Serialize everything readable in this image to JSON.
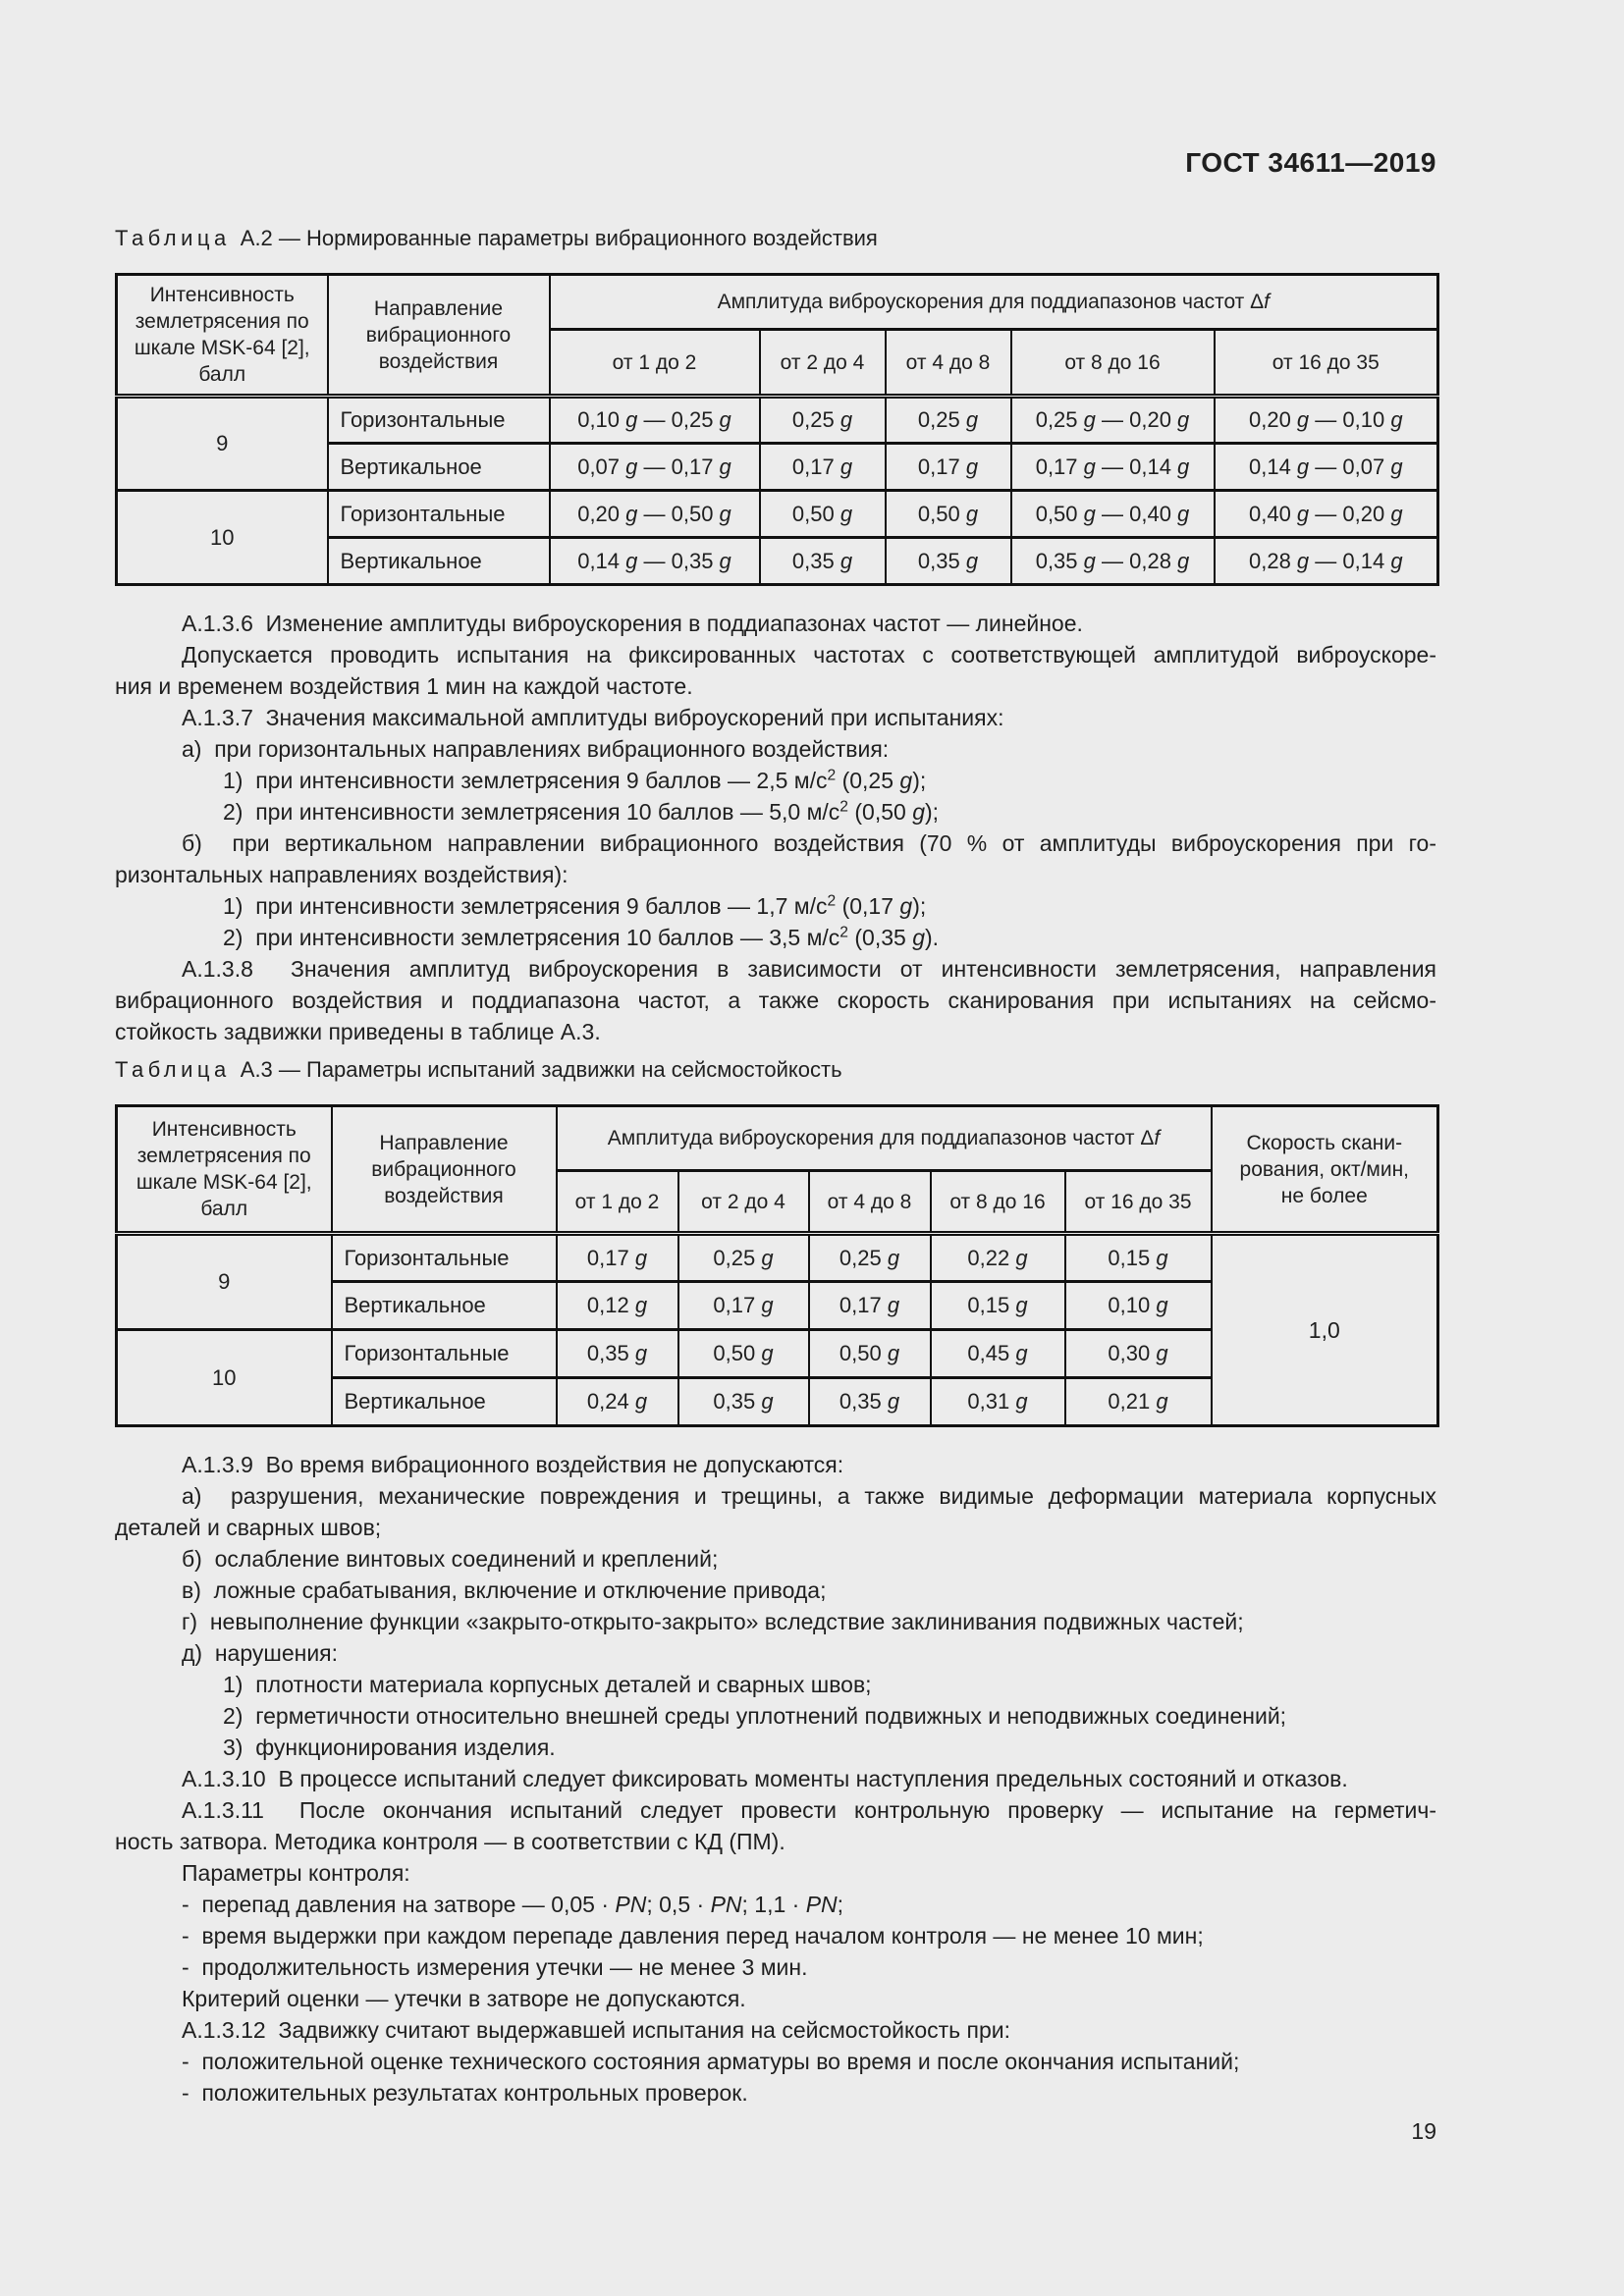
{
  "page": {
    "header": "ГОСТ 34611—2019",
    "number": "19",
    "bg_color": "#ececec",
    "text_color": "#1f1f1f",
    "border_color": "#111111"
  },
  "table_a2": {
    "caption_label": "Таблица",
    "caption_rest": "А.2 — Нормированные параметры вибрационного воздействия",
    "header": {
      "intensity": "Интенсивность землетрясения по шкале MSK-64 [2], балл",
      "direction": "Направление вибрационного воздействия",
      "amplitude": "Амплитуда виброускорения для поддиапазонов частот Δf",
      "subcols": [
        "от 1 до 2",
        "от 2 до 4",
        "от 4 до 8",
        "от 8 до 16",
        "от 16 до 35"
      ]
    },
    "rows": [
      {
        "intensity": "9",
        "direction": "Горизонтальные",
        "values": [
          "0,10 g — 0,25 g",
          "0,25 g",
          "0,25 g",
          "0,25 g — 0,20 g",
          "0,20 g — 0,10 g"
        ]
      },
      {
        "direction": "Вертикальное",
        "values": [
          "0,07 g — 0,17 g",
          "0,17 g",
          "0,17 g",
          "0,17 g — 0,14 g",
          "0,14 g — 0,07 g"
        ]
      },
      {
        "intensity": "10",
        "direction": "Горизонтальные",
        "values": [
          "0,20 g — 0,50 g",
          "0,50 g",
          "0,50 g",
          "0,50 g — 0,40 g",
          "0,40 g — 0,20 g"
        ]
      },
      {
        "direction": "Вертикальное",
        "values": [
          "0,14 g — 0,35 g",
          "0,35 g",
          "0,35 g",
          "0,35 g — 0,28 g",
          "0,28 g — 0,14 g"
        ]
      }
    ]
  },
  "table_a3": {
    "caption_label": "Таблица",
    "caption_rest": "А.3 — Параметры испытаний задвижки на сейсмостойкость",
    "header": {
      "intensity": "Интенсивность землетрясения по шкале MSK-64 [2], балл",
      "direction": "Направление вибрационного воздействия",
      "amplitude": "Амплитуда виброускорения для поддиапазонов частот Δf",
      "subcols": [
        "от 1 до 2",
        "от 2 до 4",
        "от 4 до 8",
        "от 8 до 16",
        "от 16 до 35"
      ],
      "speed": "Скорость скани-\nрования, окт/мин,\nне более"
    },
    "speed_value": "1,0",
    "rows": [
      {
        "intensity": "9",
        "direction": "Горизонтальные",
        "values": [
          "0,17 g",
          "0,25 g",
          "0,25 g",
          "0,22 g",
          "0,15 g"
        ]
      },
      {
        "direction": "Вертикальное",
        "values": [
          "0,12 g",
          "0,17 g",
          "0,17 g",
          "0,15 g",
          "0,10 g"
        ]
      },
      {
        "intensity": "10",
        "direction": "Горизонтальные",
        "values": [
          "0,35 g",
          "0,50 g",
          "0,50 g",
          "0,45 g",
          "0,30 g"
        ]
      },
      {
        "direction": "Вертикальное",
        "values": [
          "0,24 g",
          "0,35 g",
          "0,35 g",
          "0,31 g",
          "0,21 g"
        ]
      }
    ]
  },
  "body": {
    "top": [
      {
        "ind": "p",
        "lines": [
          "А.1.3.6  Изменение амплитуды виброускорения в поддиапазонах частот — линейное."
        ]
      },
      {
        "ind": "p",
        "lines": [
          "Допускается проводить испытания на фиксированных частотах с соответствующей амплитудой виброускоре-",
          "ния и временем воздействия 1 мин на каждой частоте."
        ]
      },
      {
        "ind": "p",
        "lines": [
          "А.1.3.7  Значения максимальной амплитуды виброускорений при испытаниях:"
        ]
      },
      {
        "ind": "p",
        "lines": [
          "а)  при горизонтальных направлениях вибрационного воздействия:"
        ]
      },
      {
        "ind": "s",
        "lines": [
          "1)  при интенсивности землетрясения 9 баллов — 2,5 м/с² (0,25 g);"
        ]
      },
      {
        "ind": "s",
        "lines": [
          "2)  при интенсивности землетрясения 10 баллов — 5,0 м/с² (0,50 g);"
        ]
      },
      {
        "ind": "p",
        "lines": [
          "б)  при вертикальном направлении вибрационного воздействия (70 % от амплитуды виброускорения при го-",
          "ризонтальных направлениях воздействия):"
        ]
      },
      {
        "ind": "s",
        "lines": [
          "1)  при интенсивности землетрясения 9 баллов — 1,7 м/с² (0,17 g);"
        ]
      },
      {
        "ind": "s",
        "lines": [
          "2)  при интенсивности землетрясения 10 баллов — 3,5 м/с² (0,35 g)."
        ]
      },
      {
        "ind": "p",
        "lines": [
          "А.1.3.8  Значения амплитуд виброускорения в зависимости от интенсивности землетрясения, направления",
          "вибрационного воздействия и поддиапазона частот, а также скорость сканирования при испытаниях на сейсмо-",
          "стойкость задвижки приведены в таблице А.3."
        ]
      }
    ],
    "bottom": [
      {
        "ind": "p",
        "lines": [
          "А.1.3.9  Во время вибрационного воздействия не допускаются:"
        ]
      },
      {
        "ind": "p",
        "lines": [
          "а)  разрушения, механические повреждения и трещины, а также видимые деформации материала корпусных",
          "деталей и сварных швов;"
        ]
      },
      {
        "ind": "p",
        "lines": [
          "б)  ослабление винтовых соединений и креплений;"
        ]
      },
      {
        "ind": "p",
        "lines": [
          "в)  ложные срабатывания, включение и отключение привода;"
        ]
      },
      {
        "ind": "p",
        "lines": [
          "г)  невыполнение функции «закрыто-открыто-закрыто» вследствие заклинивания подвижных частей;"
        ]
      },
      {
        "ind": "p",
        "lines": [
          "д)  нарушения:"
        ]
      },
      {
        "ind": "s",
        "lines": [
          "1)  плотности материала корпусных деталей и сварных швов;"
        ]
      },
      {
        "ind": "s",
        "lines": [
          "2)  герметичности относительно внешней среды уплотнений подвижных и неподвижных соединений;"
        ]
      },
      {
        "ind": "s",
        "lines": [
          "3)  функционирования изделия."
        ]
      },
      {
        "ind": "p",
        "lines": [
          "А.1.3.10  В процессе испытаний следует фиксировать моменты наступления предельных состояний и отказов."
        ]
      },
      {
        "ind": "p",
        "lines": [
          "А.1.3.11  После окончания испытаний следует провести контрольную проверку — испытание на герметич-",
          "ность затвора. Методика контроля — в соответствии с КД (ПМ)."
        ]
      },
      {
        "ind": "p",
        "lines": [
          "Параметры контроля:"
        ]
      },
      {
        "ind": "p",
        "lines": [
          "-  перепад давления на затворе — 0,05 · PN; 0,5 · PN; 1,1 · PN;"
        ]
      },
      {
        "ind": "p",
        "lines": [
          "-  время выдержки при каждом перепаде давления перед началом контроля — не менее 10 мин;"
        ]
      },
      {
        "ind": "p",
        "lines": [
          "-  продолжительность измерения утечки — не менее 3 мин."
        ]
      },
      {
        "ind": "p",
        "lines": [
          "Критерий оценки — утечки в затворе не допускаются."
        ]
      },
      {
        "ind": "p",
        "lines": [
          "А.1.3.12  Задвижку считают выдержавшей испытания на сейсмостойкость при:"
        ]
      },
      {
        "ind": "p",
        "lines": [
          "-  положительной оценке технического состояния арматуры во время и после окончания испытаний;"
        ]
      },
      {
        "ind": "p",
        "lines": [
          "-  положительных результатах контрольных проверок."
        ]
      }
    ]
  }
}
